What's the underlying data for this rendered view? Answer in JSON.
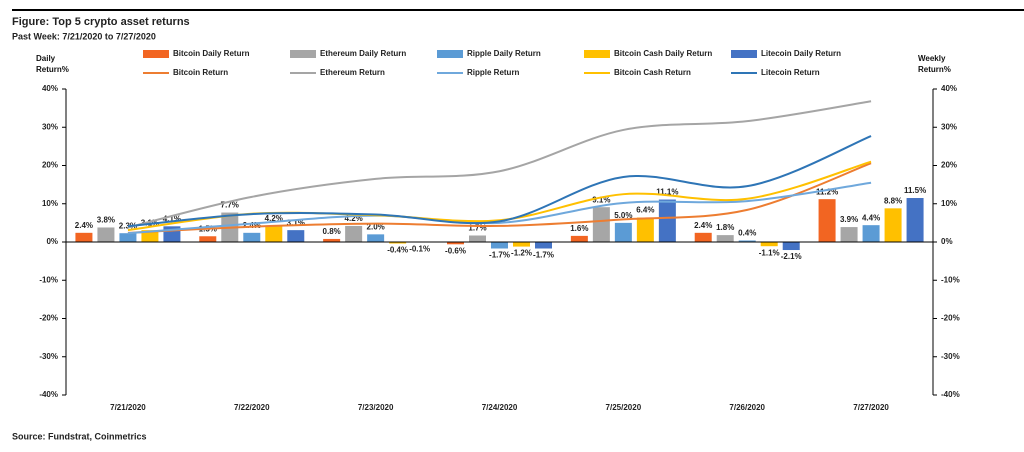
{
  "chart_data": {
    "type": "bar",
    "title": "Figure: Top 5 crypto asset returns",
    "subtitle": "Past Week: 7/21/2020 to 7/27/2020",
    "y_label": "Daily Return%",
    "y2_label": "Weekly Return%",
    "source": "Source: Fundstrat, Coinmetrics",
    "categories": [
      "7/21/2020",
      "7/22/2020",
      "7/23/2020",
      "7/24/2020",
      "7/25/2020",
      "7/26/2020",
      "7/27/2020"
    ],
    "ylim": [
      -40,
      40
    ],
    "yticks": [
      {
        "value": -40,
        "label": "-40%"
      },
      {
        "value": -30,
        "label": "-30%"
      },
      {
        "value": -20,
        "label": "-20%"
      },
      {
        "value": -10,
        "label": "-10%"
      },
      {
        "value": 0,
        "label": "0%"
      },
      {
        "value": 10,
        "label": "10%"
      },
      {
        "value": 20,
        "label": "20%"
      },
      {
        "value": 30,
        "label": "30%"
      },
      {
        "value": 40,
        "label": "40%"
      }
    ],
    "y2lim": [
      -40,
      40
    ],
    "y2ticks": [
      {
        "value": -40,
        "label": "-40%"
      },
      {
        "value": -30,
        "label": "-30%"
      },
      {
        "value": -20,
        "label": "-20%"
      },
      {
        "value": -10,
        "label": "-10%"
      },
      {
        "value": 0,
        "label": "0%"
      },
      {
        "value": 10,
        "label": "10%"
      },
      {
        "value": 20,
        "label": "20%"
      },
      {
        "value": 30,
        "label": "30%"
      },
      {
        "value": 40,
        "label": "40%"
      }
    ],
    "series": [
      {
        "name": "Bitcoin Daily Return",
        "type": "bar",
        "color": "#f26522",
        "values": [
          2.4,
          1.5,
          0.8,
          -0.6,
          1.6,
          2.4,
          11.2
        ],
        "value_labels": [
          "2.4%",
          "1.5%",
          "0.8%",
          "-0.6%",
          "1.6%",
          "2.4%",
          "11.2%"
        ]
      },
      {
        "name": "Ethereum Daily Return",
        "type": "bar",
        "color": "#a6a6a6",
        "values": [
          3.8,
          7.7,
          4.2,
          1.7,
          9.1,
          1.8,
          3.9
        ],
        "value_labels": [
          "3.8%",
          "7.7%",
          "4.2%",
          "1.7%",
          "9.1%",
          "1.8%",
          "3.9%"
        ]
      },
      {
        "name": "Ripple Daily Return",
        "type": "bar",
        "color": "#5b9bd5",
        "values": [
          2.3,
          2.4,
          2.0,
          -1.7,
          5.0,
          0.4,
          4.4
        ],
        "value_labels": [
          "2.3%",
          "2.4%",
          "2.0%",
          "-1.7%",
          "5.0%",
          "0.4%",
          "4.4%"
        ]
      },
      {
        "name": "Bitcoin Cash Daily Return",
        "type": "bar",
        "color": "#ffc000",
        "values": [
          3.1,
          4.2,
          -0.4,
          -1.2,
          6.4,
          -1.1,
          8.8
        ],
        "value_labels": [
          "3.1%",
          "4.2%",
          "-0.4%",
          "-1.2%",
          "6.4%",
          "-1.1%",
          "8.8%"
        ]
      },
      {
        "name": "Litecoin Daily Return",
        "type": "bar",
        "color": "#4472c4",
        "values": [
          4.1,
          3.1,
          -0.1,
          -1.7,
          11.1,
          -2.1,
          11.5
        ],
        "value_labels": [
          "4.1%",
          "3.1%",
          "-0.1%",
          "-1.7%",
          "11.1%",
          "-2.1%",
          "11.5%"
        ]
      },
      {
        "name": "Bitcoin Return",
        "type": "line",
        "axis": "y2",
        "color": "#ed7d31",
        "values": [
          2.4,
          4.0,
          4.8,
          4.2,
          5.9,
          8.4,
          20.6
        ]
      },
      {
        "name": "Ethereum Return",
        "type": "line",
        "axis": "y2",
        "color": "#a5a5a5",
        "values": [
          3.8,
          11.8,
          16.5,
          18.5,
          29.3,
          31.6,
          36.8
        ]
      },
      {
        "name": "Ripple Return",
        "type": "line",
        "axis": "y2",
        "color": "#6fa8dc",
        "values": [
          2.3,
          4.8,
          6.9,
          5.0,
          10.2,
          10.7,
          15.5
        ]
      },
      {
        "name": "Bitcoin Cash Return",
        "type": "line",
        "axis": "y2",
        "color": "#ffc000",
        "values": [
          3.1,
          7.4,
          7.0,
          5.7,
          12.5,
          11.3,
          21.0
        ]
      },
      {
        "name": "Litecoin Return",
        "type": "line",
        "axis": "y2",
        "color": "#2e75b6",
        "values": [
          4.1,
          7.3,
          7.2,
          5.4,
          17.0,
          14.6,
          27.7
        ]
      }
    ]
  }
}
